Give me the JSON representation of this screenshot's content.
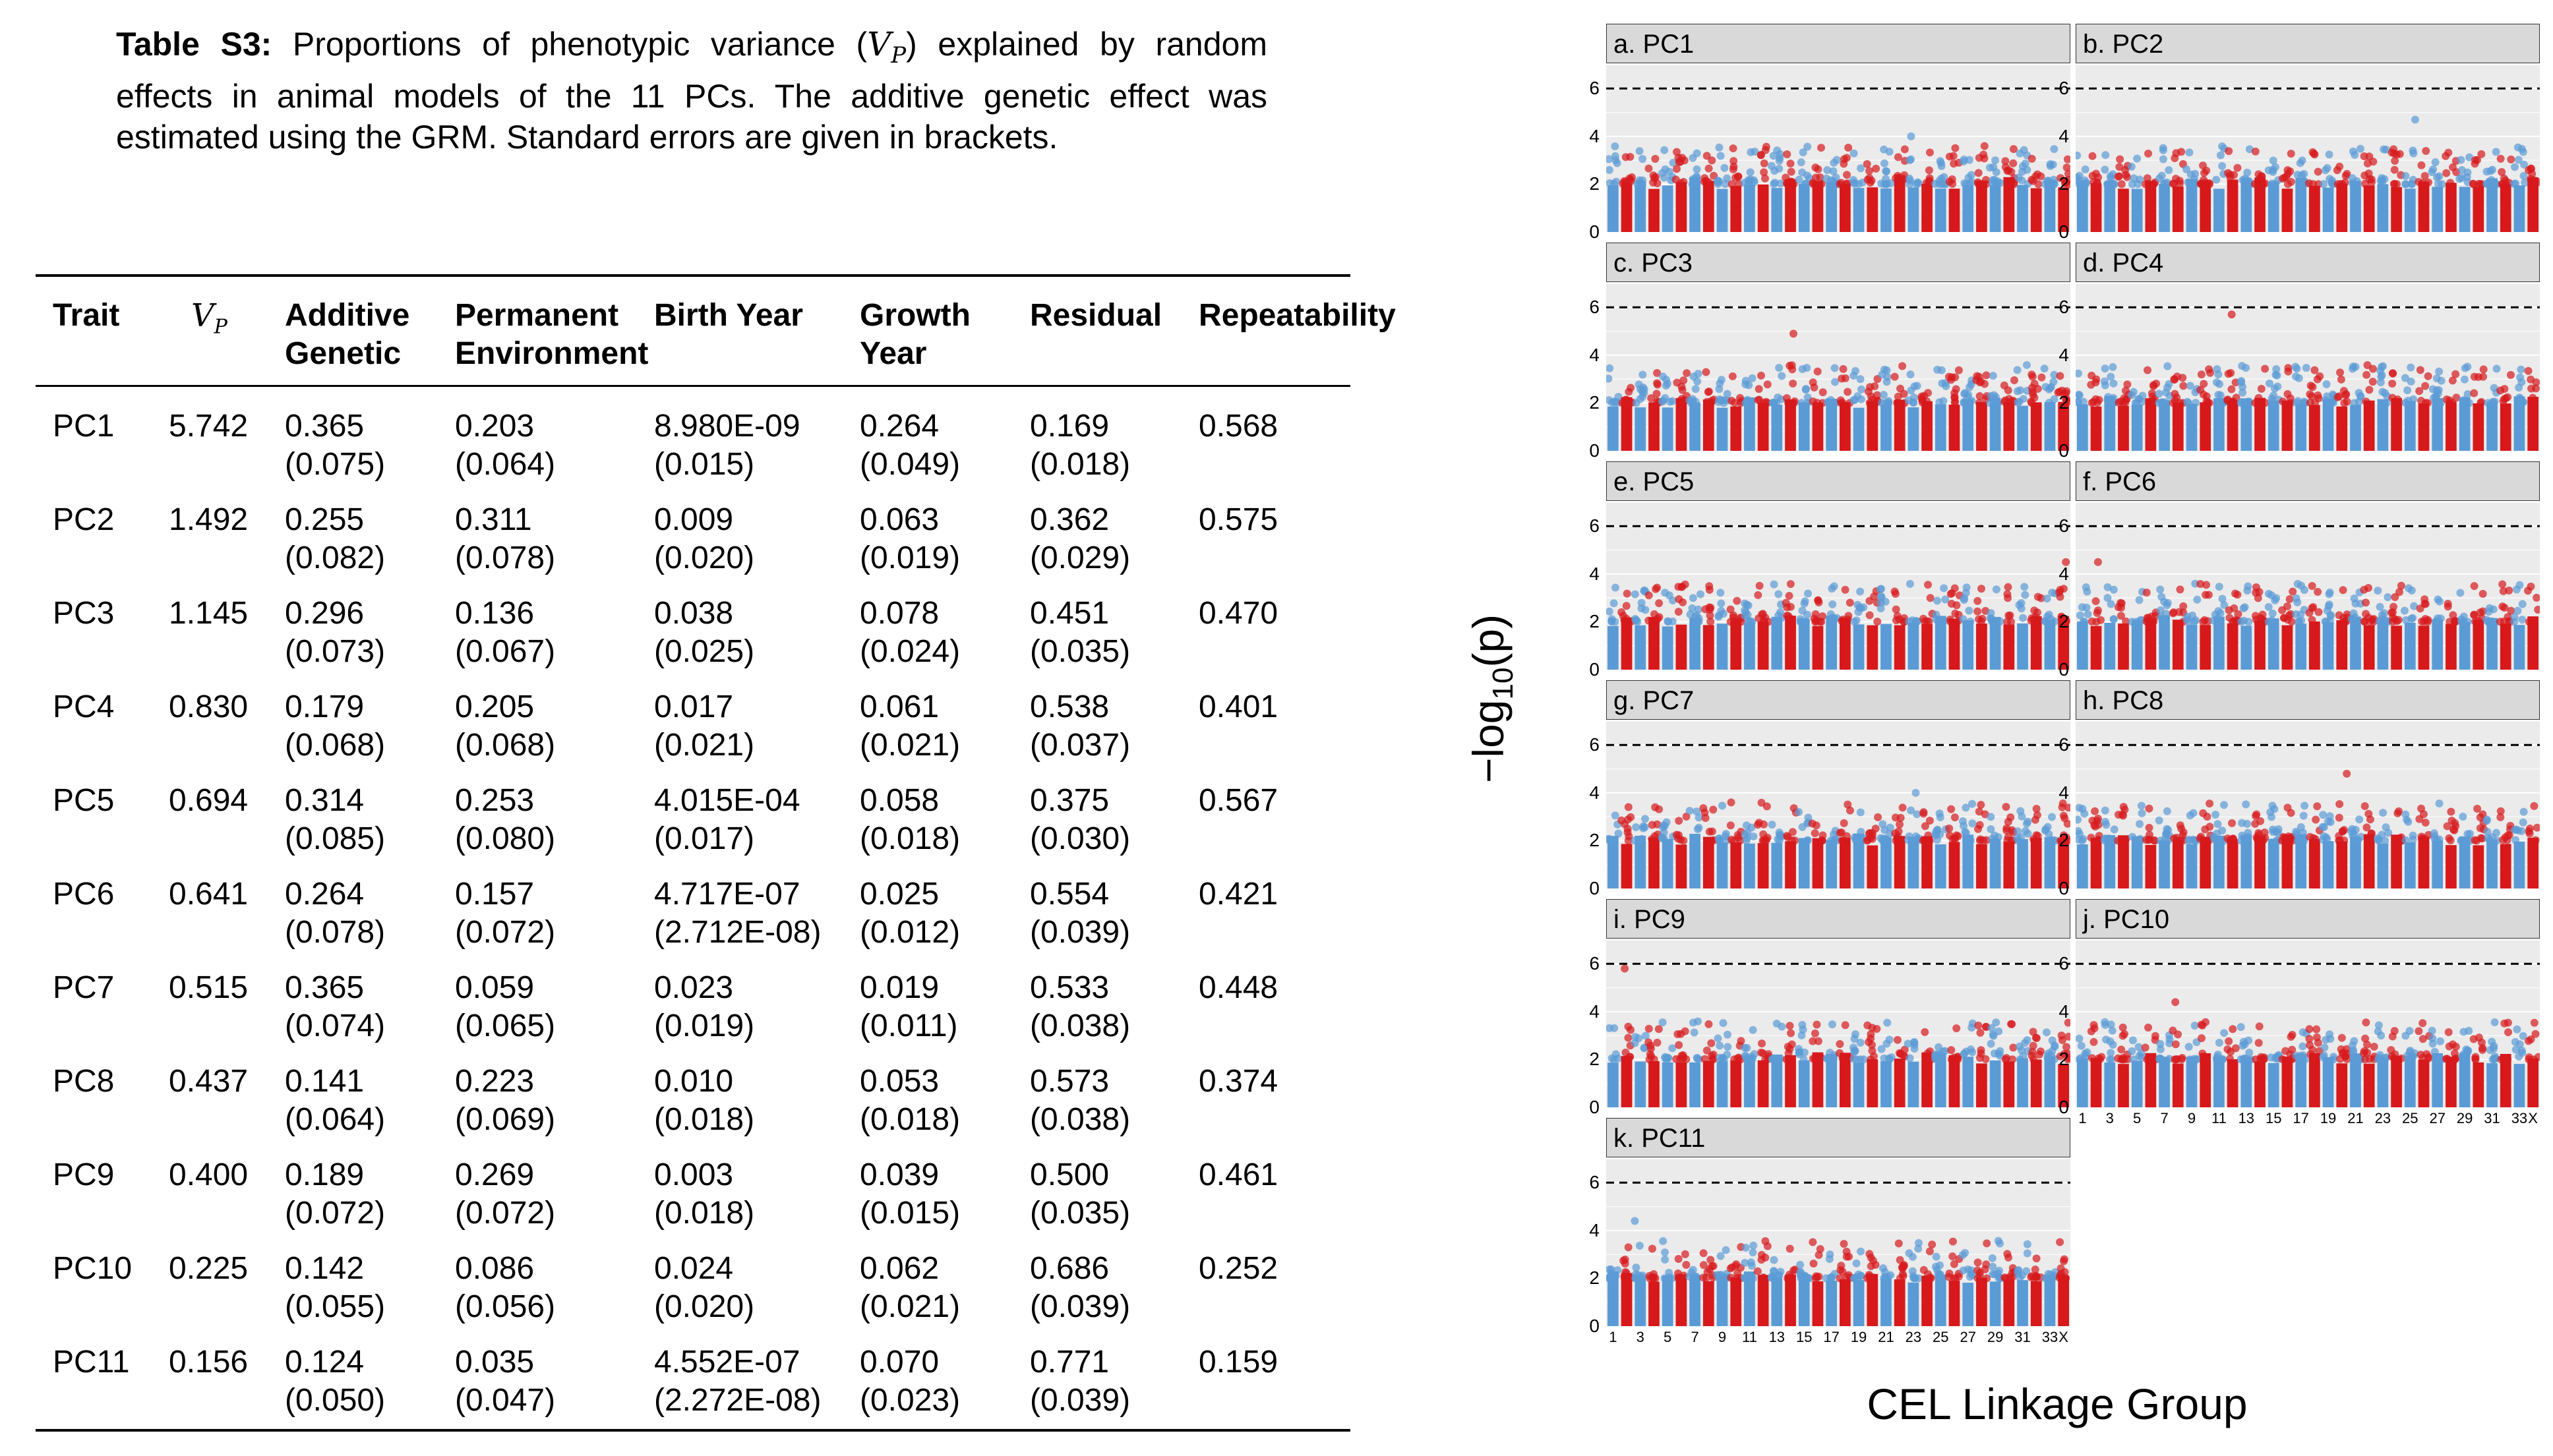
{
  "caption": {
    "label": "Table S3:",
    "text_before": " Proportions of phenotypic variance (",
    "vp_symbol": "V",
    "vp_sub": "P",
    "text_after": ") explained by random effects in animal models of the 11 PCs. The additive genetic effect was estimated using the GRM. Standard errors are given in brackets."
  },
  "table": {
    "headers": [
      [
        "Trait",
        ""
      ],
      [
        "V",
        "P"
      ],
      [
        "Additive",
        "Genetic"
      ],
      [
        "Permanent",
        "Environment"
      ],
      [
        "Birth Year",
        ""
      ],
      [
        "Growth",
        "Year"
      ],
      [
        "Residual",
        ""
      ],
      [
        "Repeatability",
        ""
      ]
    ],
    "rows": [
      {
        "trait": "PC1",
        "vp": "5.742",
        "additive": [
          "0.365",
          "(0.075)"
        ],
        "permanent": [
          "0.203",
          "(0.064)"
        ],
        "birth": [
          "8.980E-09",
          "(0.015)"
        ],
        "growth": [
          "0.264",
          "(0.049)"
        ],
        "residual": [
          "0.169",
          "(0.018)"
        ],
        "repeatability": "0.568"
      },
      {
        "trait": "PC2",
        "vp": "1.492",
        "additive": [
          "0.255",
          "(0.082)"
        ],
        "permanent": [
          "0.311",
          "(0.078)"
        ],
        "birth": [
          "0.009",
          "(0.020)"
        ],
        "growth": [
          "0.063",
          "(0.019)"
        ],
        "residual": [
          "0.362",
          "(0.029)"
        ],
        "repeatability": "0.575"
      },
      {
        "trait": "PC3",
        "vp": "1.145",
        "additive": [
          "0.296",
          "(0.073)"
        ],
        "permanent": [
          "0.136",
          "(0.067)"
        ],
        "birth": [
          "0.038",
          "(0.025)"
        ],
        "growth": [
          "0.078",
          "(0.024)"
        ],
        "residual": [
          "0.451",
          "(0.035)"
        ],
        "repeatability": "0.470"
      },
      {
        "trait": "PC4",
        "vp": "0.830",
        "additive": [
          "0.179",
          "(0.068)"
        ],
        "permanent": [
          "0.205",
          "(0.068)"
        ],
        "birth": [
          "0.017",
          "(0.021)"
        ],
        "growth": [
          "0.061",
          "(0.021)"
        ],
        "residual": [
          "0.538",
          "(0.037)"
        ],
        "repeatability": "0.401"
      },
      {
        "trait": "PC5",
        "vp": "0.694",
        "additive": [
          "0.314",
          "(0.085)"
        ],
        "permanent": [
          "0.253",
          "(0.080)"
        ],
        "birth": [
          "4.015E-04",
          "(0.017)"
        ],
        "growth": [
          "0.058",
          "(0.018)"
        ],
        "residual": [
          "0.375",
          "(0.030)"
        ],
        "repeatability": "0.567"
      },
      {
        "trait": "PC6",
        "vp": "0.641",
        "additive": [
          "0.264",
          "(0.078)"
        ],
        "permanent": [
          "0.157",
          "(0.072)"
        ],
        "birth": [
          "4.717E-07",
          "(2.712E-08)"
        ],
        "growth": [
          "0.025",
          "(0.012)"
        ],
        "residual": [
          "0.554",
          "(0.039)"
        ],
        "repeatability": "0.421"
      },
      {
        "trait": "PC7",
        "vp": "0.515",
        "additive": [
          "0.365",
          "(0.074)"
        ],
        "permanent": [
          "0.059",
          "(0.065)"
        ],
        "birth": [
          "0.023",
          "(0.019)"
        ],
        "growth": [
          "0.019",
          "(0.011)"
        ],
        "residual": [
          "0.533",
          "(0.038)"
        ],
        "repeatability": "0.448"
      },
      {
        "trait": "PC8",
        "vp": "0.437",
        "additive": [
          "0.141",
          "(0.064)"
        ],
        "permanent": [
          "0.223",
          "(0.069)"
        ],
        "birth": [
          "0.010",
          "(0.018)"
        ],
        "growth": [
          "0.053",
          "(0.018)"
        ],
        "residual": [
          "0.573",
          "(0.038)"
        ],
        "repeatability": "0.374"
      },
      {
        "trait": "PC9",
        "vp": "0.400",
        "additive": [
          "0.189",
          "(0.072)"
        ],
        "permanent": [
          "0.269",
          "(0.072)"
        ],
        "birth": [
          "0.003",
          "(0.018)"
        ],
        "growth": [
          "0.039",
          "(0.015)"
        ],
        "residual": [
          "0.500",
          "(0.035)"
        ],
        "repeatability": "0.461"
      },
      {
        "trait": "PC10",
        "vp": "0.225",
        "additive": [
          "0.142",
          "(0.055)"
        ],
        "permanent": [
          "0.086",
          "(0.056)"
        ],
        "birth": [
          "0.024",
          "(0.020)"
        ],
        "growth": [
          "0.062",
          "(0.021)"
        ],
        "residual": [
          "0.686",
          "(0.039)"
        ],
        "repeatability": "0.252"
      },
      {
        "trait": "PC11",
        "vp": "0.156",
        "additive": [
          "0.124",
          "(0.050)"
        ],
        "permanent": [
          "0.035",
          "(0.047)"
        ],
        "birth": [
          "4.552E-07",
          "(2.272E-08)"
        ],
        "growth": [
          "0.070",
          "(0.023)"
        ],
        "residual": [
          "0.771",
          "(0.039)"
        ],
        "repeatability": "0.159"
      }
    ]
  },
  "chart_data": {
    "type": "scatter",
    "style": "manhattan",
    "ylabel_prefix": "−log",
    "ylabel_sub": "10",
    "ylabel_suffix": "(p)",
    "xlabel": "CEL Linkage Group",
    "ylim": [
      0,
      7
    ],
    "yticks": [
      "0",
      "2",
      "4",
      "6"
    ],
    "threshold": 6,
    "xtick_labels": [
      "1",
      "3",
      "5",
      "7",
      "9",
      "11",
      "13",
      "15",
      "17",
      "19",
      "21",
      "23",
      "25",
      "27",
      "29",
      "31",
      "33",
      "X"
    ],
    "colors": {
      "odd_groups": "#5b9bd5",
      "even_groups": "#d7191c",
      "threshold_line": "#000000"
    },
    "panels": [
      {
        "title": "a. PC1",
        "peak_max": 4.0
      },
      {
        "title": "b. PC2",
        "peak_max": 4.7
      },
      {
        "title": "c. PC3",
        "peak_max": 4.9
      },
      {
        "title": "d. PC4",
        "peak_max": 5.7
      },
      {
        "title": "e. PC5",
        "peak_max": 4.5
      },
      {
        "title": "f. PC6",
        "peak_max": 4.5
      },
      {
        "title": "g. PC7",
        "peak_max": 4.0
      },
      {
        "title": "h. PC8",
        "peak_max": 4.8
      },
      {
        "title": "i. PC9",
        "peak_max": 5.8
      },
      {
        "title": "j. PC10",
        "peak_max": 4.4
      },
      {
        "title": "k. PC11",
        "peak_max": 4.4
      }
    ]
  }
}
